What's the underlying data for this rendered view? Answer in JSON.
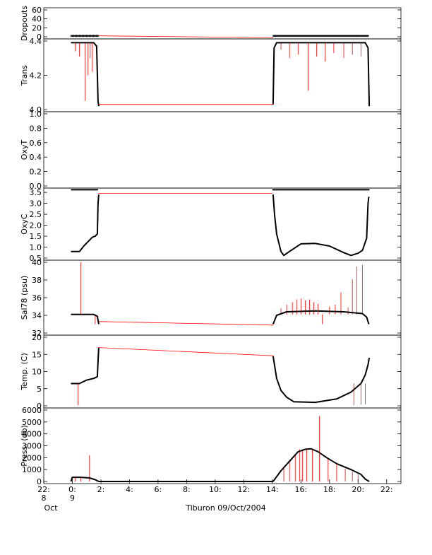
{
  "chart_data": {
    "type": "line",
    "title": "Tiburon 09/Oct/2004",
    "x_axis": {
      "range_hours": [
        -2,
        23
      ],
      "ticks": [
        {
          "hours": -2,
          "label": "22:",
          "sub": "8"
        },
        {
          "hours": 0,
          "label": "0:",
          "sub": "9"
        },
        {
          "hours": 2,
          "label": "2:",
          "sub": ""
        },
        {
          "hours": 4,
          "label": "4:",
          "sub": ""
        },
        {
          "hours": 6,
          "label": "6:",
          "sub": ""
        },
        {
          "hours": 8,
          "label": "8:",
          "sub": ""
        },
        {
          "hours": 10,
          "label": "10:",
          "sub": ""
        },
        {
          "hours": 12,
          "label": "12:",
          "sub": ""
        },
        {
          "hours": 14,
          "label": "14:",
          "sub": ""
        },
        {
          "hours": 16,
          "label": "16:",
          "sub": ""
        },
        {
          "hours": 18,
          "label": "18:",
          "sub": ""
        },
        {
          "hours": 20,
          "label": "20:",
          "sub": ""
        },
        {
          "hours": 22,
          "label": "22:",
          "sub": ""
        }
      ],
      "month_label": "Oct"
    },
    "panels": [
      {
        "ylabel": "Dropouts",
        "ylim": [
          0,
          60
        ],
        "ticks": [
          0,
          20,
          40,
          60
        ],
        "series": [
          {
            "color": "#000000",
            "points": [
              [
                -0.1,
                2
              ],
              [
                1.85,
                2
              ]
            ],
            "dense": true
          },
          {
            "color": "#000000",
            "points": [
              [
                14.05,
                2
              ],
              [
                20.75,
                2
              ]
            ],
            "dense": true
          },
          {
            "color": "#ff0000",
            "points": [
              [
                1.85,
                2
              ],
              [
                14.05,
                -2
              ]
            ]
          }
        ]
      },
      {
        "ylabel": "Trans",
        "ylim": [
          4.0,
          4.4
        ],
        "ticks": [
          4.0,
          4.2,
          4.4
        ],
        "tick_labels": [
          "4.0",
          "4.2",
          "4.4"
        ],
        "series": [
          {
            "color": "#000000",
            "points": [
              [
                -0.1,
                4.39
              ],
              [
                1.5,
                4.39
              ],
              [
                1.7,
                4.37
              ],
              [
                1.8,
                4.05
              ],
              [
                1.85,
                4.02
              ]
            ]
          },
          {
            "color": "#ff0000",
            "points": [
              [
                1.85,
                4.03
              ],
              [
                14.05,
                4.03
              ]
            ]
          },
          {
            "color": "#000000",
            "points": [
              [
                14.05,
                4.03
              ],
              [
                14.12,
                4.36
              ],
              [
                14.3,
                4.39
              ],
              [
                20.5,
                4.39
              ],
              [
                20.7,
                4.36
              ],
              [
                20.78,
                4.02
              ]
            ]
          }
        ],
        "spikes": {
          "color": "#ff0000",
          "base": 4.39,
          "values": [
            [
              0.2,
              4.34
            ],
            [
              0.5,
              4.31
            ],
            [
              0.9,
              4.05
            ],
            [
              1.1,
              4.2
            ],
            [
              1.25,
              4.3
            ],
            [
              1.4,
              4.22
            ],
            [
              14.6,
              4.35
            ],
            [
              15.2,
              4.3
            ],
            [
              15.8,
              4.32
            ],
            [
              16.5,
              4.11
            ],
            [
              17.1,
              4.31
            ],
            [
              17.7,
              4.28
            ],
            [
              18.3,
              4.33
            ],
            [
              19.0,
              4.3
            ],
            [
              19.6,
              4.32
            ],
            [
              20.2,
              4.31
            ]
          ]
        }
      },
      {
        "ylabel": "OxyT",
        "ylim": [
          0.0,
          1.0
        ],
        "ticks": [
          0.0,
          0.2,
          0.4,
          0.6,
          0.8,
          1.0
        ],
        "tick_labels": [
          "0.0",
          "0.2",
          "0.4",
          "0.6",
          "0.8",
          "1.0"
        ],
        "series": []
      },
      {
        "ylabel": "OxyC",
        "ylim": [
          0.5,
          3.6
        ],
        "ticks": [
          0.5,
          1.0,
          1.5,
          2.0,
          2.5,
          3.0,
          3.5
        ],
        "tick_labels": [
          "0.5",
          "1.0",
          "1.5",
          "2.0",
          "2.5",
          "3.0",
          "3.5"
        ],
        "series": [
          {
            "color": "#000000",
            "points": [
              [
                -0.1,
                3.62
              ],
              [
                1.8,
                3.62
              ]
            ]
          },
          {
            "color": "#000000",
            "points": [
              [
                14.0,
                3.62
              ],
              [
                20.8,
                3.62
              ]
            ]
          },
          {
            "color": "#ff0000",
            "points": [
              [
                1.8,
                3.45
              ],
              [
                14.0,
                3.45
              ]
            ]
          },
          {
            "color": "#000000",
            "points": [
              [
                -0.1,
                0.8
              ],
              [
                0.5,
                0.8
              ],
              [
                0.8,
                1.05
              ],
              [
                1.1,
                1.25
              ],
              [
                1.4,
                1.45
              ],
              [
                1.6,
                1.5
              ],
              [
                1.75,
                1.6
              ],
              [
                1.8,
                3.0
              ],
              [
                1.85,
                3.4
              ]
            ]
          },
          {
            "color": "#000000",
            "points": [
              [
                14.05,
                3.4
              ],
              [
                14.15,
                2.5
              ],
              [
                14.3,
                1.6
              ],
              [
                14.6,
                0.8
              ],
              [
                14.8,
                0.62
              ],
              [
                15.2,
                0.8
              ],
              [
                16.0,
                1.15
              ],
              [
                17.0,
                1.17
              ],
              [
                18.0,
                1.05
              ],
              [
                19.0,
                0.75
              ],
              [
                19.5,
                0.62
              ],
              [
                20.0,
                0.72
              ],
              [
                20.3,
                0.85
              ],
              [
                20.6,
                1.4
              ],
              [
                20.7,
                3.0
              ],
              [
                20.75,
                3.3
              ]
            ]
          }
        ]
      },
      {
        "ylabel": "Sal78 (psu)",
        "ylim": [
          32,
          40
        ],
        "ticks": [
          32,
          34,
          36,
          38,
          40
        ],
        "series": [
          {
            "color": "#000000",
            "points": [
              [
                -0.1,
                34.1
              ],
              [
                1.5,
                34.1
              ],
              [
                1.75,
                33.9
              ],
              [
                1.85,
                33.0
              ]
            ]
          },
          {
            "color": "#ff0000",
            "points": [
              [
                1.85,
                33.3
              ],
              [
                14.05,
                32.9
              ]
            ]
          },
          {
            "color": "#000000",
            "points": [
              [
                14.05,
                33.0
              ],
              [
                14.3,
                34.0
              ],
              [
                15.0,
                34.4
              ],
              [
                17.0,
                34.5
              ],
              [
                19.0,
                34.4
              ],
              [
                20.3,
                34.2
              ],
              [
                20.6,
                33.8
              ],
              [
                20.75,
                33.0
              ]
            ]
          }
        ],
        "spikes": {
          "color": "#ff0000",
          "base": 34.1,
          "values": [
            [
              0.6,
              40.0
            ],
            [
              1.6,
              33.0
            ],
            [
              14.6,
              34.8
            ],
            [
              15.0,
              35.2
            ],
            [
              15.4,
              35.5
            ],
            [
              15.7,
              35.8
            ],
            [
              16.0,
              35.9
            ],
            [
              16.3,
              35.7
            ],
            [
              16.6,
              35.8
            ],
            [
              16.9,
              35.5
            ],
            [
              17.2,
              35.3
            ],
            [
              17.5,
              33.0
            ],
            [
              18.0,
              35.0
            ],
            [
              18.4,
              35.2
            ],
            [
              18.8,
              36.6
            ],
            [
              19.3,
              34.9
            ],
            [
              19.6,
              38.1
            ],
            [
              19.9,
              39.5
            ],
            [
              20.3,
              39.7
            ]
          ]
        }
      },
      {
        "ylabel": "Temp. (C)",
        "ylim": [
          0,
          20
        ],
        "ticks": [
          0,
          5,
          10,
          15,
          20
        ],
        "series": [
          {
            "color": "#000000",
            "points": [
              [
                -0.1,
                6.5
              ],
              [
                0.5,
                6.5
              ],
              [
                1.0,
                7.5
              ],
              [
                1.5,
                8.0
              ],
              [
                1.75,
                8.5
              ],
              [
                1.8,
                13.0
              ],
              [
                1.85,
                17.0
              ]
            ]
          },
          {
            "color": "#ff0000",
            "points": [
              [
                1.85,
                17.0
              ],
              [
                14.05,
                14.6
              ]
            ]
          },
          {
            "color": "#000000",
            "points": [
              [
                14.05,
                14.5
              ],
              [
                14.3,
                8.0
              ],
              [
                14.6,
                4.5
              ],
              [
                15.0,
                2.5
              ],
              [
                15.5,
                1.2
              ],
              [
                17.0,
                1.0
              ],
              [
                18.5,
                2.0
              ],
              [
                19.5,
                4.0
              ],
              [
                20.2,
                6.5
              ],
              [
                20.5,
                9.0
              ],
              [
                20.7,
                12.0
              ],
              [
                20.78,
                14.0
              ]
            ]
          }
        ],
        "spikes": {
          "color": "#ff0000",
          "base": 6.5,
          "values": [
            [
              0.4,
              0.2
            ],
            [
              19.7,
              0.2
            ],
            [
              20.2,
              0.3
            ],
            [
              20.5,
              0.5
            ]
          ]
        }
      },
      {
        "ylabel": "Press. (db)",
        "ylim": [
          0,
          6000
        ],
        "ticks": [
          0,
          1000,
          2000,
          3000,
          4000,
          5000,
          6000
        ],
        "series": [
          {
            "color": "#000000",
            "points": [
              [
                -0.1,
                0
              ],
              [
                0.0,
                350
              ],
              [
                0.6,
                350
              ],
              [
                1.2,
                300
              ],
              [
                1.6,
                150
              ],
              [
                1.85,
                0
              ]
            ]
          },
          {
            "color": "#000000",
            "points": [
              [
                1.85,
                0
              ],
              [
                14.05,
                0
              ]
            ]
          },
          {
            "color": "#000000",
            "points": [
              [
                14.05,
                0
              ],
              [
                14.6,
                900
              ],
              [
                15.2,
                1700
              ],
              [
                15.8,
                2500
              ],
              [
                16.3,
                2700
              ],
              [
                16.7,
                2750
              ],
              [
                17.2,
                2500
              ],
              [
                17.8,
                2000
              ],
              [
                18.5,
                1500
              ],
              [
                19.5,
                1000
              ],
              [
                20.2,
                600
              ],
              [
                20.5,
                200
              ],
              [
                20.78,
                0
              ]
            ]
          }
        ],
        "spikes": {
          "color": "#ff0000",
          "base": 0,
          "values": [
            [
              0.2,
              400
            ],
            [
              0.6,
              300
            ],
            [
              1.2,
              2200
            ],
            [
              14.8,
              1200
            ],
            [
              15.2,
              1800
            ],
            [
              15.6,
              2300
            ],
            [
              15.9,
              2700
            ],
            [
              16.1,
              2700
            ],
            [
              16.4,
              2800
            ],
            [
              16.8,
              2700
            ],
            [
              17.3,
              5500
            ],
            [
              17.9,
              1900
            ],
            [
              18.5,
              1500
            ],
            [
              19.1,
              1100
            ],
            [
              19.6,
              800
            ],
            [
              20.0,
              600
            ]
          ]
        }
      }
    ]
  }
}
